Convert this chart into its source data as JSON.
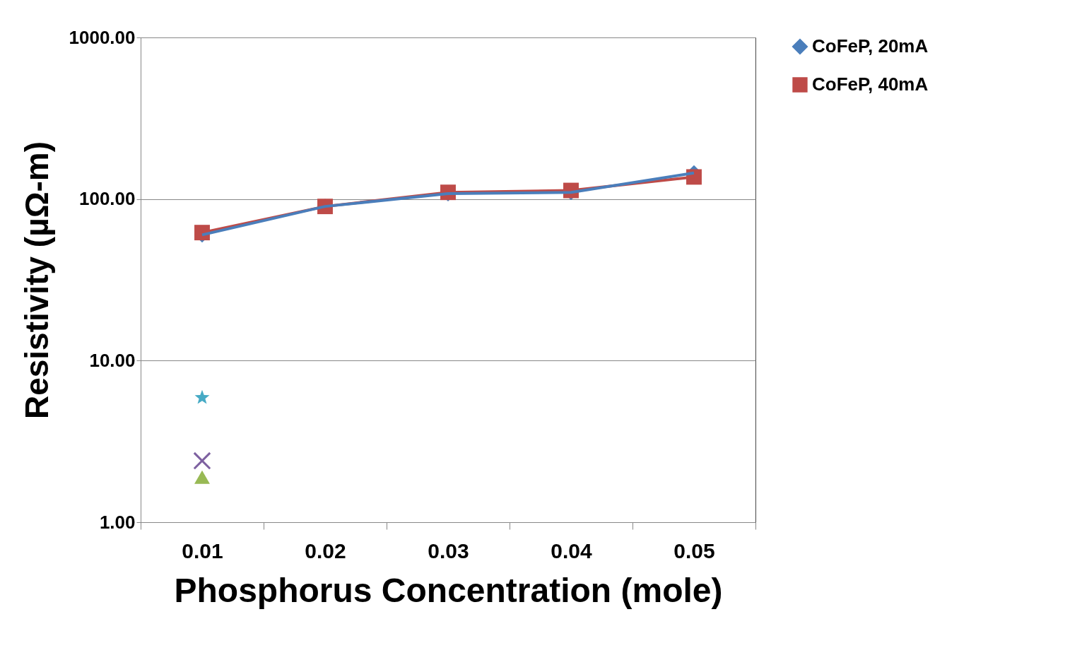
{
  "chart_data": {
    "type": "line",
    "xlabel": "Phosphorus Concentration (mole)",
    "ylabel": "Resistivity (µΩ-m)",
    "categories": [
      "0.01",
      "0.02",
      "0.03",
      "0.04",
      "0.05"
    ],
    "series": [
      {
        "name": "CoFeP, 20mA",
        "color": "#4a7ebb",
        "marker": "diamond",
        "values": [
          60,
          90,
          108,
          110,
          145
        ]
      },
      {
        "name": "CoFeP, 40mA",
        "color": "#be4b48",
        "marker": "square",
        "values": [
          62,
          90,
          110,
          113,
          137
        ]
      },
      {
        "type": "scatter",
        "color": "#98b954",
        "marker": "triangle",
        "values": [
          1.9,
          null,
          null,
          null,
          null
        ]
      },
      {
        "type": "scatter",
        "color": "#7d60a0",
        "marker": "cross",
        "values": [
          2.4,
          null,
          null,
          null,
          null
        ]
      },
      {
        "type": "scatter",
        "color": "#46aac5",
        "marker": "star",
        "values": [
          5.9,
          null,
          null,
          null,
          null
        ]
      }
    ],
    "log": "y",
    "ylim": [
      1,
      1000
    ],
    "yticks": [
      {
        "value": 1,
        "label": "1.00"
      },
      {
        "value": 10,
        "label": "10.00"
      },
      {
        "value": 100,
        "label": "100.00"
      },
      {
        "value": 1000,
        "label": "1000.00"
      }
    ],
    "grid": "y",
    "legend": "right"
  }
}
